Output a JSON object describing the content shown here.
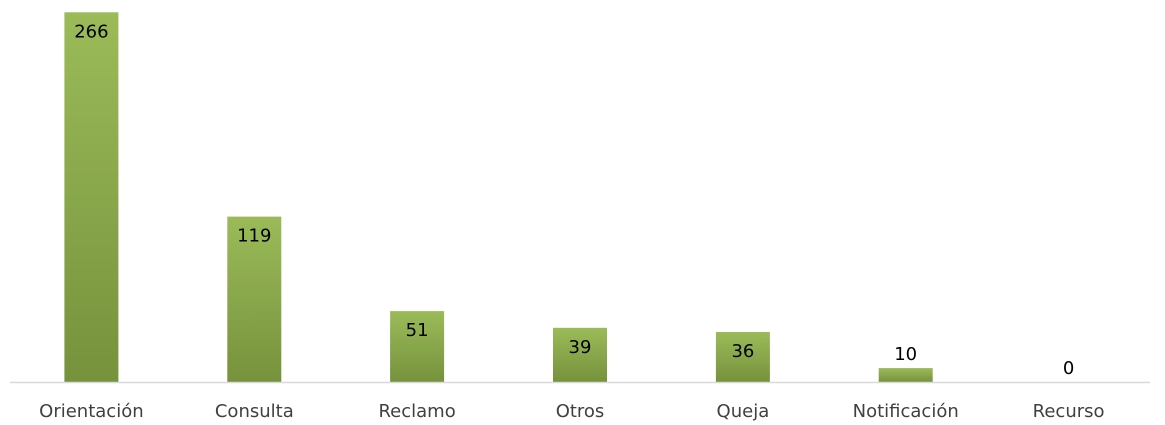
{
  "chart_data": {
    "type": "bar",
    "categories": [
      "Orientación",
      "Consulta",
      "Reclamo",
      "Otros",
      "Queja",
      "Notificación",
      "Recurso"
    ],
    "values": [
      266,
      119,
      51,
      39,
      36,
      10,
      0
    ],
    "data_labels": [
      "266",
      "119",
      "51",
      "39",
      "36",
      "10",
      "0"
    ],
    "ylim": [
      0,
      272
    ],
    "grid": false,
    "legend": "none",
    "colors": {
      "bar_top": "#9bbb59",
      "bar_bottom": "#76923c",
      "axis": "#d9d9d9"
    }
  }
}
